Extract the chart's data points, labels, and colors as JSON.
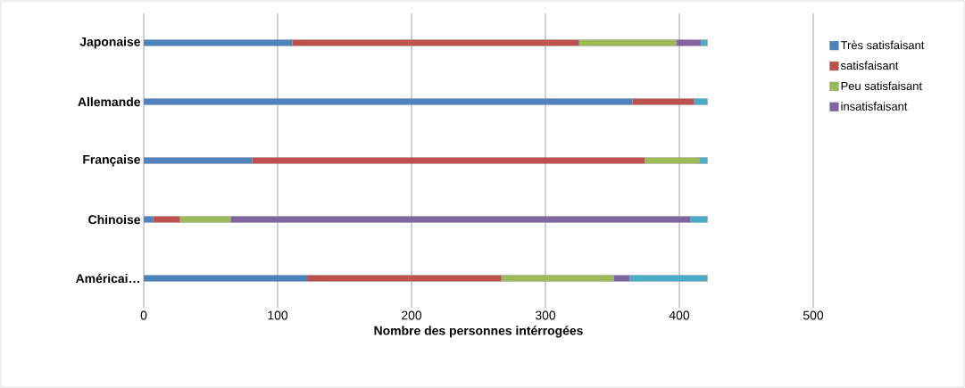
{
  "chart_data": {
    "type": "bar",
    "orientation": "horizontal",
    "stacked": true,
    "categories": [
      "Japonaise",
      "Allemande",
      "Française",
      "Chinoise",
      "Américai…"
    ],
    "series": [
      {
        "name": "Très satisfaisant",
        "color": "#4f81bd",
        "values": [
          111,
          365,
          81,
          7,
          122
        ]
      },
      {
        "name": "satisfaisant",
        "color": "#c0504d",
        "values": [
          214,
          46,
          293,
          20,
          145
        ]
      },
      {
        "name": "Peu satisfaisant",
        "color": "#9bbb59",
        "values": [
          73,
          0,
          41,
          38,
          84
        ]
      },
      {
        "name": "insatisfaisant",
        "color": "#8064a2",
        "values": [
          18,
          0,
          0,
          343,
          12
        ]
      },
      {
        "color": "#4bacc6",
        "values": [
          5,
          10,
          6,
          13,
          58
        ]
      }
    ],
    "xlim": [
      0,
      500
    ],
    "xticks": [
      0,
      100,
      200,
      300,
      400,
      500
    ],
    "xlabel": "Nombre des personnes intérrogées",
    "grid": "x",
    "legend": "right"
  }
}
